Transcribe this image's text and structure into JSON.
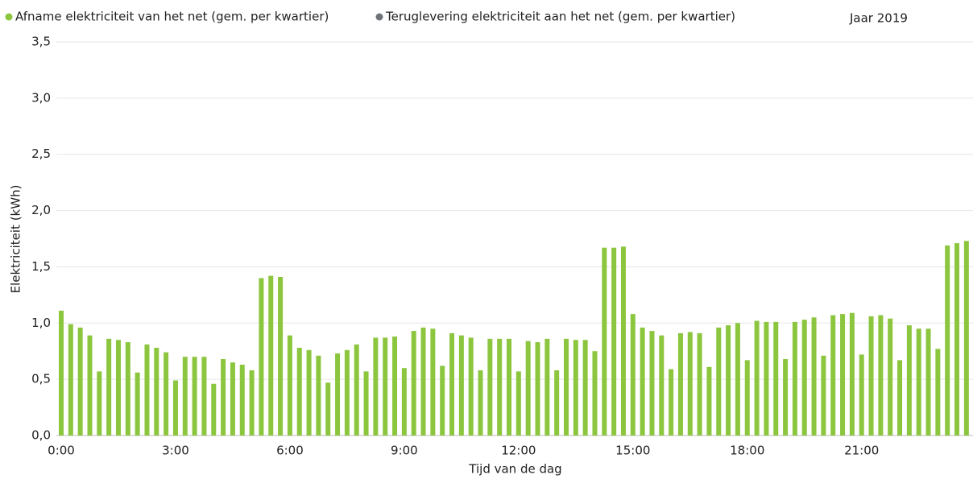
{
  "chart_data": {
    "type": "bar",
    "annotation": "Jaar 2019",
    "x_label": "Tijd van de dag",
    "y_label": "Elektriciteit (kWh)",
    "categories": [
      "0:00",
      null,
      null,
      null,
      null,
      null,
      null,
      null,
      null,
      null,
      null,
      null,
      "3:00",
      null,
      null,
      null,
      null,
      null,
      null,
      null,
      null,
      null,
      null,
      null,
      "6:00",
      null,
      null,
      null,
      null,
      null,
      null,
      null,
      null,
      null,
      null,
      null,
      "9:00",
      null,
      null,
      null,
      null,
      null,
      null,
      null,
      null,
      null,
      null,
      null,
      "12:00",
      null,
      null,
      null,
      null,
      null,
      null,
      null,
      null,
      null,
      null,
      null,
      "15:00",
      null,
      null,
      null,
      null,
      null,
      null,
      null,
      null,
      null,
      null,
      null,
      "18:00",
      null,
      null,
      null,
      null,
      null,
      null,
      null,
      null,
      null,
      null,
      null,
      "21:00",
      null,
      null,
      null,
      null,
      null,
      null,
      null,
      null,
      null,
      null,
      null
    ],
    "series": [
      {
        "name": "Afname elektriciteit van het net (gem. per kwartier)",
        "color": "#8cc63f",
        "values": [
          1.11,
          0.99,
          0.96,
          0.89,
          0.57,
          0.86,
          0.85,
          0.83,
          0.56,
          0.81,
          0.78,
          0.74,
          0.49,
          0.7,
          0.7,
          0.7,
          0.46,
          0.68,
          0.65,
          0.63,
          0.58,
          1.4,
          1.42,
          1.41,
          0.89,
          0.78,
          0.76,
          0.71,
          0.47,
          0.73,
          0.76,
          0.81,
          0.57,
          0.87,
          0.87,
          0.88,
          0.6,
          0.93,
          0.96,
          0.95,
          0.62,
          0.91,
          0.89,
          0.87,
          0.58,
          0.86,
          0.86,
          0.86,
          0.57,
          0.84,
          0.83,
          0.86,
          0.58,
          0.86,
          0.85,
          0.85,
          0.75,
          1.67,
          1.67,
          1.68,
          1.08,
          0.96,
          0.93,
          0.89,
          0.59,
          0.91,
          0.92,
          0.91,
          0.61,
          0.96,
          0.98,
          1.0,
          0.67,
          1.02,
          1.01,
          1.01,
          0.68,
          1.01,
          1.03,
          1.05,
          0.71,
          1.07,
          1.08,
          1.09,
          0.72,
          1.06,
          1.07,
          1.04,
          0.67,
          0.98,
          0.95,
          0.95,
          0.77,
          1.69,
          1.71,
          1.73
        ]
      },
      {
        "name": "Teruglevering elektriciteit aan het net (gem. per kwartier)",
        "color": "#6d7378",
        "values": [
          null,
          null,
          null,
          null,
          null,
          null,
          null,
          null,
          null,
          null,
          null,
          null,
          null,
          null,
          null,
          null,
          null,
          null,
          null,
          null,
          null,
          null,
          null,
          null,
          null,
          null,
          null,
          null,
          null,
          null,
          null,
          null,
          null,
          null,
          null,
          null,
          null,
          null,
          null,
          null,
          null,
          null,
          null,
          null,
          null,
          null,
          null,
          null,
          null,
          null,
          null,
          null,
          null,
          null,
          null,
          null,
          null,
          null,
          null,
          null,
          null,
          null,
          null,
          null,
          null,
          null,
          null,
          null,
          null,
          null,
          null,
          null,
          null,
          null,
          null,
          null,
          null,
          null,
          null,
          null,
          null,
          null,
          null,
          null,
          null,
          null,
          null,
          null,
          null,
          null,
          null,
          null,
          null,
          null,
          null,
          null
        ]
      }
    ],
    "ylim": [
      0,
      3.5
    ],
    "yticks": [
      {
        "value": 0,
        "label": "0,0"
      },
      {
        "value": 0.5,
        "label": "0,5"
      },
      {
        "value": 1,
        "label": "1,0"
      },
      {
        "value": 1.5,
        "label": "1,5"
      },
      {
        "value": 2,
        "label": "2,0"
      },
      {
        "value": 2.5,
        "label": "2,5"
      },
      {
        "value": 3,
        "label": "3,0"
      },
      {
        "value": 3.5,
        "label": "3,5"
      }
    ],
    "grid": true
  }
}
